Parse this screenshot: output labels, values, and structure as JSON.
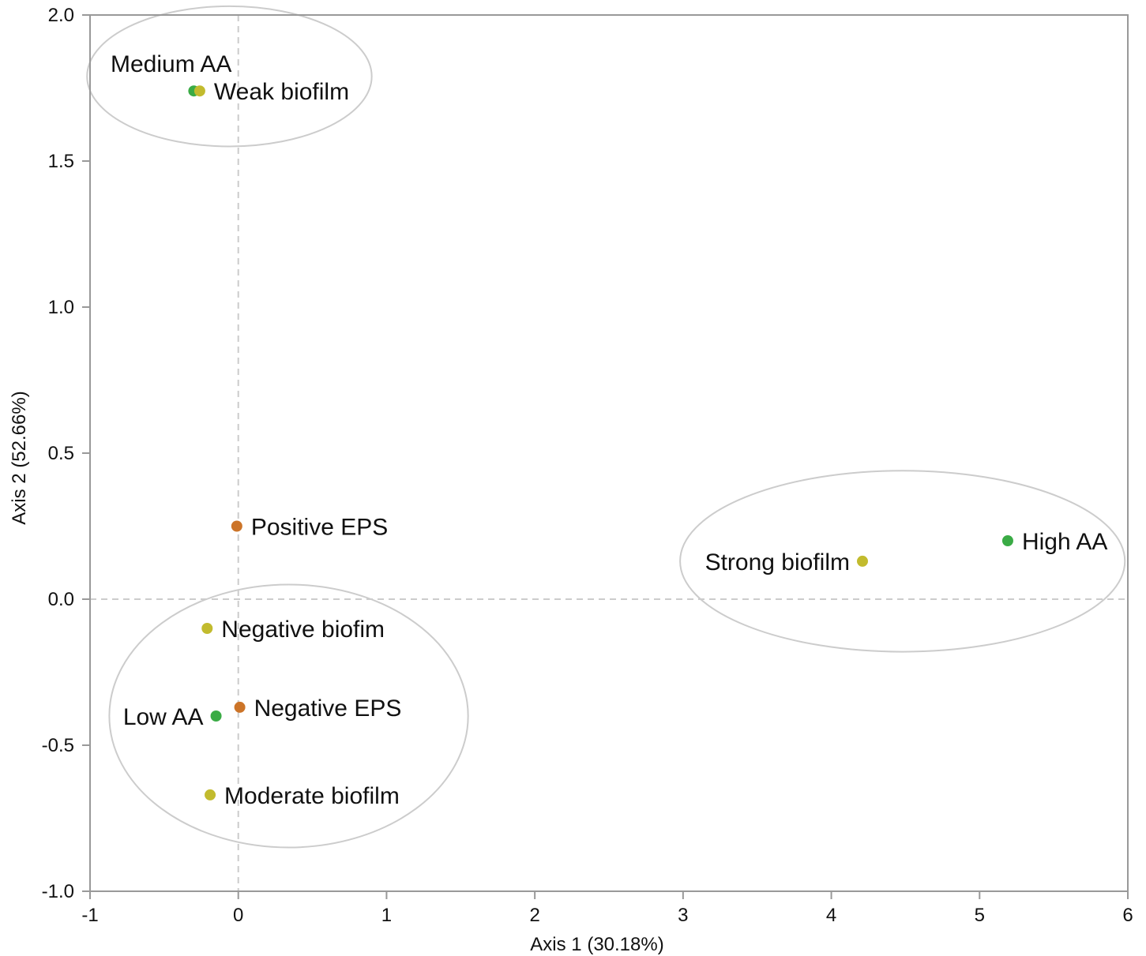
{
  "chart_data": {
    "type": "scatter",
    "xlabel": "Axis 1 (30.18%)",
    "ylabel": "Axis 2 (52.66%)",
    "xlim": [
      -1,
      6
    ],
    "ylim": [
      -1.0,
      2.0
    ],
    "x_ticks": [
      "-1",
      "0",
      "1",
      "2",
      "3",
      "4",
      "5",
      "6"
    ],
    "y_ticks": [
      "-1.0",
      "-0.5",
      "0.0",
      "0.5",
      "1.0",
      "1.5",
      "2.0"
    ],
    "grid": false,
    "reference_lines": {
      "x": 0,
      "y": 0,
      "style": "dashed"
    },
    "colors": {
      "aa": "#3aab45",
      "biofilm": "#c2bb2e",
      "eps": "#cc7428",
      "ellipse": "#cccccc",
      "frame": "#999999"
    },
    "points": [
      {
        "label": "Medium AA",
        "x": -0.3,
        "y": 1.74,
        "group": "aa",
        "label_pos": "above-left"
      },
      {
        "label": "Weak biofilm",
        "x": -0.26,
        "y": 1.74,
        "group": "biofilm",
        "label_pos": "right"
      },
      {
        "label": "Positive EPS",
        "x": -0.01,
        "y": 0.25,
        "group": "eps",
        "label_pos": "right"
      },
      {
        "label": "Negative biofim",
        "x": -0.21,
        "y": -0.1,
        "group": "biofilm",
        "label_pos": "right"
      },
      {
        "label": "Low AA",
        "x": -0.15,
        "y": -0.4,
        "group": "aa",
        "label_pos": "left"
      },
      {
        "label": "Negative EPS",
        "x": 0.01,
        "y": -0.37,
        "group": "eps",
        "label_pos": "right"
      },
      {
        "label": "Moderate biofilm",
        "x": -0.19,
        "y": -0.67,
        "group": "biofilm",
        "label_pos": "right"
      },
      {
        "label": "Strong biofilm",
        "x": 4.21,
        "y": 0.13,
        "group": "biofilm",
        "label_pos": "left"
      },
      {
        "label": "High AA",
        "x": 5.19,
        "y": 0.2,
        "group": "aa",
        "label_pos": "right"
      }
    ],
    "ellipses": [
      {
        "cx": -0.06,
        "cy": 1.79,
        "rx": 0.96,
        "ry": 0.24
      },
      {
        "cx": 0.34,
        "cy": -0.4,
        "rx": 1.21,
        "ry": 0.45
      },
      {
        "cx": 4.48,
        "cy": 0.13,
        "rx": 1.5,
        "ry": 0.31
      }
    ]
  }
}
